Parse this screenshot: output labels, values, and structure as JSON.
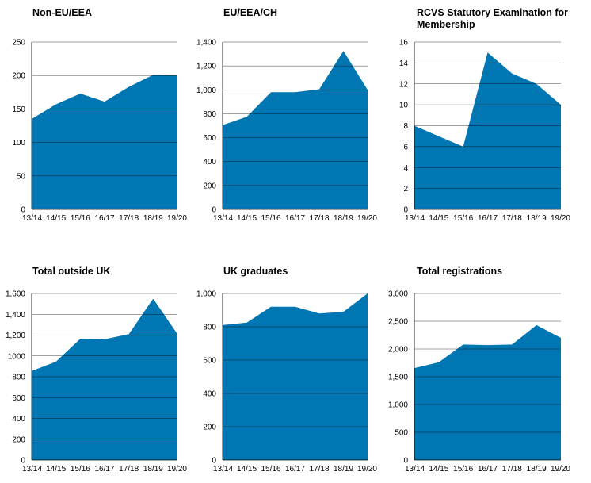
{
  "chart_data": [
    {
      "type": "area",
      "title": "Non-EU/EEA",
      "categories": [
        "13/14",
        "14/15",
        "15/16",
        "16/17",
        "17/18",
        "18/19",
        "19/20"
      ],
      "values": [
        135,
        157,
        173,
        161,
        183,
        201,
        200
      ],
      "ylim": [
        0,
        250
      ],
      "yticks": [
        0,
        50,
        100,
        150,
        200,
        250
      ],
      "ytick_labels": [
        "0",
        "50",
        "100",
        "150",
        "200",
        "250"
      ],
      "grid": true,
      "color": "#0077b3"
    },
    {
      "type": "area",
      "title": "EU/EEA/CH",
      "categories": [
        "13/14",
        "14/15",
        "15/16",
        "16/17",
        "17/18",
        "18/19",
        "19/20"
      ],
      "values": [
        705,
        775,
        980,
        980,
        1005,
        1325,
        1000
      ],
      "ylim": [
        0,
        1400
      ],
      "yticks": [
        0,
        200,
        400,
        600,
        800,
        1000,
        1200,
        1400
      ],
      "ytick_labels": [
        "0",
        "200",
        "400",
        "600",
        "800",
        "1,000",
        "1,200",
        "1,400"
      ],
      "grid": true,
      "color": "#0077b3"
    },
    {
      "type": "area",
      "title": "RCVS Statutory Examination for Membership",
      "categories": [
        "13/14",
        "14/15",
        "15/16",
        "16/17",
        "17/18",
        "18/19",
        "19/20"
      ],
      "values": [
        8,
        7,
        6,
        15,
        13,
        12,
        10
      ],
      "ylim": [
        0,
        16
      ],
      "yticks": [
        0,
        2,
        4,
        6,
        8,
        10,
        12,
        14,
        16
      ],
      "ytick_labels": [
        "0",
        "2",
        "4",
        "6",
        "8",
        "10",
        "12",
        "14",
        "16"
      ],
      "grid": true,
      "color": "#0077b3"
    },
    {
      "type": "area",
      "title": "Total outside UK",
      "categories": [
        "13/14",
        "14/15",
        "15/16",
        "16/17",
        "17/18",
        "18/19",
        "19/20"
      ],
      "values": [
        855,
        945,
        1165,
        1160,
        1210,
        1550,
        1210
      ],
      "ylim": [
        0,
        1600
      ],
      "yticks": [
        0,
        200,
        400,
        600,
        800,
        1000,
        1200,
        1400,
        1600
      ],
      "ytick_labels": [
        "0",
        "200",
        "400",
        "600",
        "800",
        "1000",
        "1,200",
        "1,400",
        "1,600"
      ],
      "grid": true,
      "color": "#0077b3"
    },
    {
      "type": "area",
      "title": "UK graduates",
      "categories": [
        "13/14",
        "14/15",
        "15/16",
        "16/17",
        "17/18",
        "18/19",
        "19/20"
      ],
      "values": [
        810,
        825,
        920,
        920,
        880,
        890,
        1000
      ],
      "ylim": [
        0,
        1000
      ],
      "yticks": [
        0,
        200,
        400,
        600,
        800,
        1000
      ],
      "ytick_labels": [
        "0",
        "200",
        "400",
        "600",
        "800",
        "1,000"
      ],
      "grid": true,
      "color": "#0077b3"
    },
    {
      "type": "area",
      "title": "Total registrations",
      "categories": [
        "13/14",
        "14/15",
        "15/16",
        "16/17",
        "17/18",
        "18/19",
        "19/20"
      ],
      "values": [
        1655,
        1760,
        2080,
        2070,
        2080,
        2430,
        2200
      ],
      "ylim": [
        0,
        3000
      ],
      "yticks": [
        0,
        500,
        1000,
        1500,
        2000,
        2500,
        3000
      ],
      "ytick_labels": [
        "0",
        "500",
        "1,000",
        "1,500",
        "2,000",
        "2,500",
        "3,000"
      ],
      "grid": true,
      "color": "#0077b3"
    }
  ]
}
